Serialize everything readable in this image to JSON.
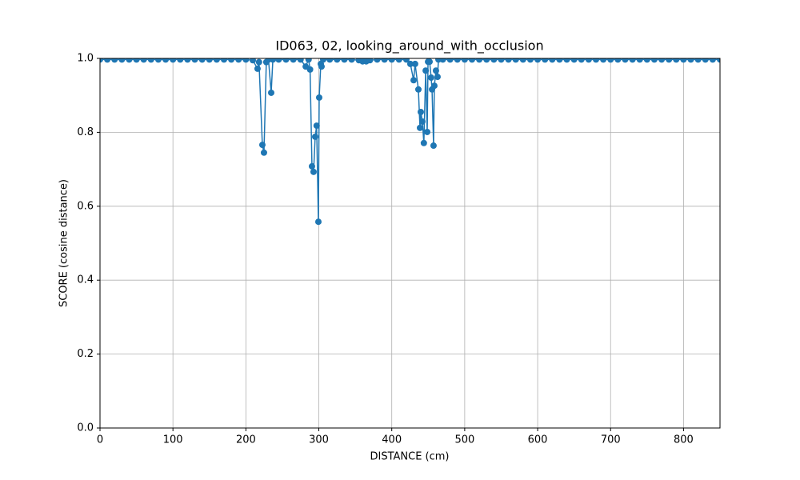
{
  "chart_data": {
    "type": "line",
    "title": "ID063, 02, looking_around_with_occlusion",
    "x_label": "DISTANCE (cm)",
    "y_label": "SCORE (cosine distance)",
    "color": "#1f77b4",
    "grid": true,
    "marker": "circle",
    "xlim": [
      0,
      850
    ],
    "xticks": [
      0,
      100,
      200,
      300,
      400,
      500,
      600,
      700,
      800
    ],
    "ylim": [
      0,
      1
    ],
    "yticks": [
      {
        "value": 0,
        "label": "0.0"
      },
      0.2,
      0.4,
      0.6,
      0.8,
      {
        "value": 1,
        "label": "1.0"
      }
    ],
    "x": [
      0,
      10,
      20,
      30,
      40,
      50,
      60,
      70,
      80,
      90,
      100,
      110,
      120,
      130,
      140,
      150,
      160,
      170,
      180,
      190,
      200,
      209.5,
      216,
      218,
      222.6,
      224.8,
      228,
      231,
      234.7,
      237,
      245,
      255,
      265,
      275,
      282,
      286,
      288,
      290.6,
      292.8,
      295,
      297,
      299.4,
      300.5,
      302.7,
      303.8,
      306,
      315,
      325,
      335,
      345,
      355,
      360,
      365,
      370,
      380,
      390,
      400,
      410,
      420,
      425.5,
      430,
      432,
      436.5,
      438.7,
      439.8,
      442,
      444,
      446.5,
      448.6,
      449.7,
      451.9,
      454,
      455.2,
      457.3,
      458.4,
      460.6,
      462.8,
      464,
      470,
      480,
      490,
      500,
      510,
      520,
      530,
      540,
      550,
      560,
      570,
      580,
      590,
      600,
      610,
      620,
      630,
      640,
      650,
      660,
      670,
      680,
      690,
      700,
      710,
      720,
      730,
      740,
      750,
      760,
      770,
      780,
      790,
      800,
      810,
      820,
      830,
      840,
      850
    ],
    "values": [
      0.997,
      0.997,
      0.997,
      0.997,
      0.997,
      0.997,
      0.997,
      0.997,
      0.997,
      0.997,
      0.997,
      0.997,
      0.997,
      0.997,
      0.997,
      0.997,
      0.997,
      0.997,
      0.997,
      0.997,
      0.997,
      0.995,
      0.972,
      0.99,
      0.766,
      0.745,
      0.99,
      0.997,
      0.907,
      0.997,
      0.997,
      0.997,
      0.997,
      0.997,
      0.978,
      0.997,
      0.97,
      0.708,
      0.693,
      0.788,
      0.818,
      0.558,
      0.894,
      0.985,
      0.978,
      0.997,
      0.997,
      0.997,
      0.997,
      0.997,
      0.995,
      0.992,
      0.992,
      0.995,
      0.997,
      0.997,
      0.997,
      0.997,
      0.997,
      0.985,
      0.941,
      0.985,
      0.916,
      0.812,
      0.855,
      0.829,
      0.771,
      0.967,
      0.801,
      0.991,
      0.991,
      0.948,
      0.916,
      0.764,
      0.926,
      0.967,
      0.95,
      0.997,
      0.997,
      0.997,
      0.997,
      0.997,
      0.997,
      0.997,
      0.997,
      0.997,
      0.997,
      0.997,
      0.997,
      0.997,
      0.997,
      0.997,
      0.997,
      0.997,
      0.997,
      0.997,
      0.997,
      0.997,
      0.997,
      0.997,
      0.997,
      0.997,
      0.997,
      0.997,
      0.997,
      0.997,
      0.997,
      0.997,
      0.997,
      0.997,
      0.997,
      0.997,
      0.997,
      0.997,
      0.997,
      0.997,
      0.997
    ]
  }
}
